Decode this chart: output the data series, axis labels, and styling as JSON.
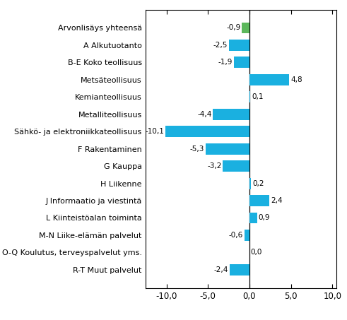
{
  "categories": [
    "R-T Muut palvelut",
    "O-Q Koulutus, terveyspalvelut yms.",
    "M-N Liike-elämän palvelut",
    "L Kiinteistöalan toiminta",
    "J Informaatio ja viestintä",
    "H Liikenne",
    "G Kauppa",
    "F Rakentaminen",
    "Sähkö- ja elektroniikkateollisuus",
    "Metalliteollisuus",
    "Kemianteollisuus",
    "Metsäteollisuus",
    "B-E Koko teollisuus",
    "A Alkutuotanto",
    "Arvonlisäys yhteensä"
  ],
  "values": [
    -2.4,
    0.0,
    -0.6,
    0.9,
    2.4,
    0.2,
    -3.2,
    -5.3,
    -10.1,
    -4.4,
    0.1,
    4.8,
    -1.9,
    -2.5,
    -0.9
  ],
  "bar_colors": [
    "#1ab0e0",
    "#1ab0e0",
    "#1ab0e0",
    "#1ab0e0",
    "#1ab0e0",
    "#1ab0e0",
    "#1ab0e0",
    "#1ab0e0",
    "#1ab0e0",
    "#1ab0e0",
    "#1ab0e0",
    "#1ab0e0",
    "#1ab0e0",
    "#1ab0e0",
    "#5cb85c"
  ],
  "xlim": [
    -12.5,
    10.5
  ],
  "xticks": [
    -10,
    -5,
    0,
    5,
    10
  ],
  "xticklabels": [
    "-10,0",
    "-5,0",
    "0,0",
    "5,0",
    "10,0"
  ],
  "bar_height": 0.65,
  "label_fontsize": 8.0,
  "tick_fontsize": 8.5,
  "value_label_fontsize": 7.5
}
